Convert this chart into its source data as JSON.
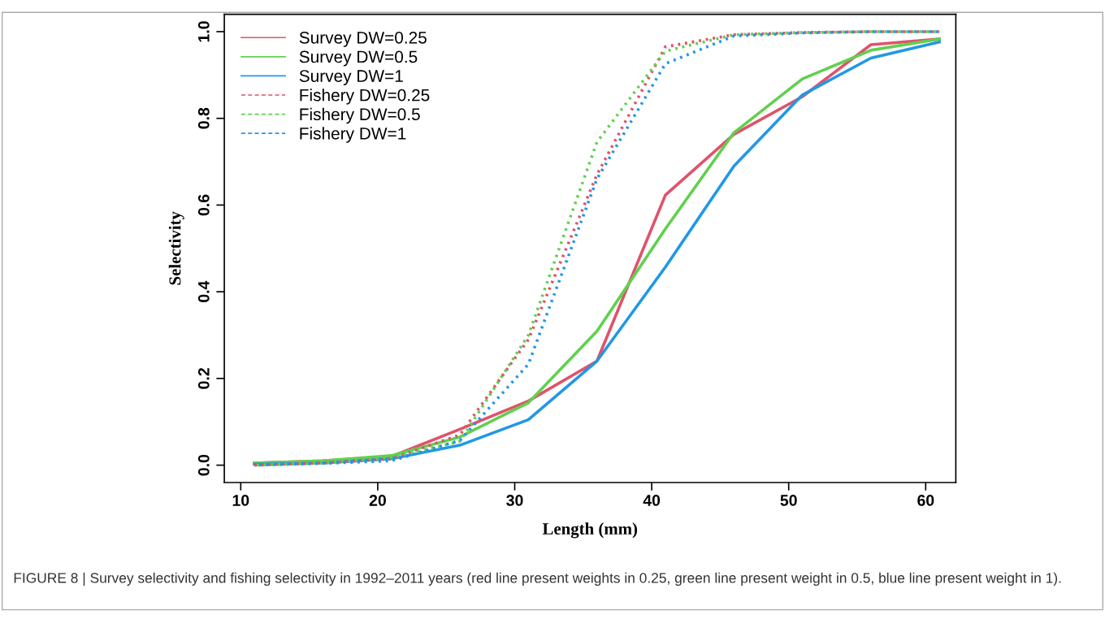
{
  "chart_data": {
    "type": "line",
    "xlabel": "Length (mm)",
    "ylabel": "Selectivity",
    "x": [
      11,
      16,
      21,
      26,
      31,
      36,
      41,
      46,
      51,
      56,
      61
    ],
    "series": [
      {
        "name": "Survey DW=0.25",
        "color": "#df536b",
        "line_style": "solid",
        "values": [
          0.005,
          0.01,
          0.02,
          0.083,
          0.148,
          0.24,
          0.623,
          0.763,
          0.85,
          0.97,
          0.983
        ]
      },
      {
        "name": "Survey DW=0.5",
        "color": "#61d04f",
        "line_style": "solid",
        "values": [
          0.005,
          0.01,
          0.022,
          0.065,
          0.144,
          0.309,
          0.545,
          0.767,
          0.891,
          0.957,
          0.983
        ]
      },
      {
        "name": "Survey DW=1",
        "color": "#2297e6",
        "line_style": "solid",
        "values": [
          0.002,
          0.005,
          0.015,
          0.046,
          0.105,
          0.24,
          0.457,
          0.69,
          0.854,
          0.939,
          0.976
        ]
      },
      {
        "name": "Fishery DW=0.25",
        "color": "#df536b",
        "line_style": "dashed",
        "values": [
          0.0,
          0.005,
          0.015,
          0.07,
          0.29,
          0.67,
          0.965,
          0.993,
          0.998,
          1.0,
          1.0
        ]
      },
      {
        "name": "Fishery DW=0.5",
        "color": "#61d04f",
        "line_style": "dashed",
        "values": [
          0.0,
          0.005,
          0.018,
          0.055,
          0.3,
          0.745,
          0.955,
          0.993,
          0.998,
          1.0,
          1.0
        ]
      },
      {
        "name": "Fishery DW=1",
        "color": "#2297e6",
        "line_style": "dashed",
        "values": [
          0.0,
          0.004,
          0.01,
          0.057,
          0.233,
          0.66,
          0.926,
          0.99,
          0.997,
          1.0,
          1.0
        ]
      }
    ],
    "xlim": [
      8.8,
      62.2
    ],
    "ylim": [
      -0.04,
      1.04
    ],
    "xticks": [
      10,
      20,
      30,
      40,
      50,
      60
    ],
    "yticks": [
      {
        "value": 0,
        "label": "0.0"
      },
      0.2,
      0.4,
      0.6,
      0.8,
      {
        "value": 1,
        "label": "1.0"
      }
    ],
    "grid": false,
    "legend": "top left",
    "marker": "none",
    "annotations": [
      "FIGURE 8 | Survey selectivity and fishing selectivity in 1992–2011 years (red line present weights in 0.25, green line present weight in 0.5, blue line present weight in 1)."
    ]
  }
}
